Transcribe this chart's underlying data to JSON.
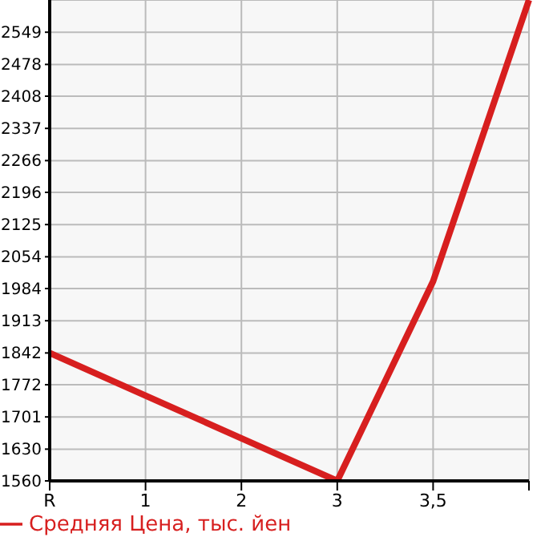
{
  "chart_data": {
    "type": "line",
    "categories": [
      "R",
      "1",
      "2",
      "3",
      "3,5",
      null
    ],
    "series": [
      {
        "name": "Средняя Цена, тыс. йен",
        "color": "#d71f1f",
        "values": [
          1842,
          1748,
          1654,
          1560,
          2000,
          2620
        ]
      }
    ],
    "ylim": [
      1560,
      2620
    ],
    "yticks": [
      1560,
      1630,
      1701,
      1772,
      1842,
      1913,
      1984,
      2054,
      2125,
      2196,
      2266,
      2337,
      2408,
      2478,
      2549
    ],
    "grid": true,
    "legend": "bottom left",
    "marker": "none",
    "line_style": "solid"
  }
}
